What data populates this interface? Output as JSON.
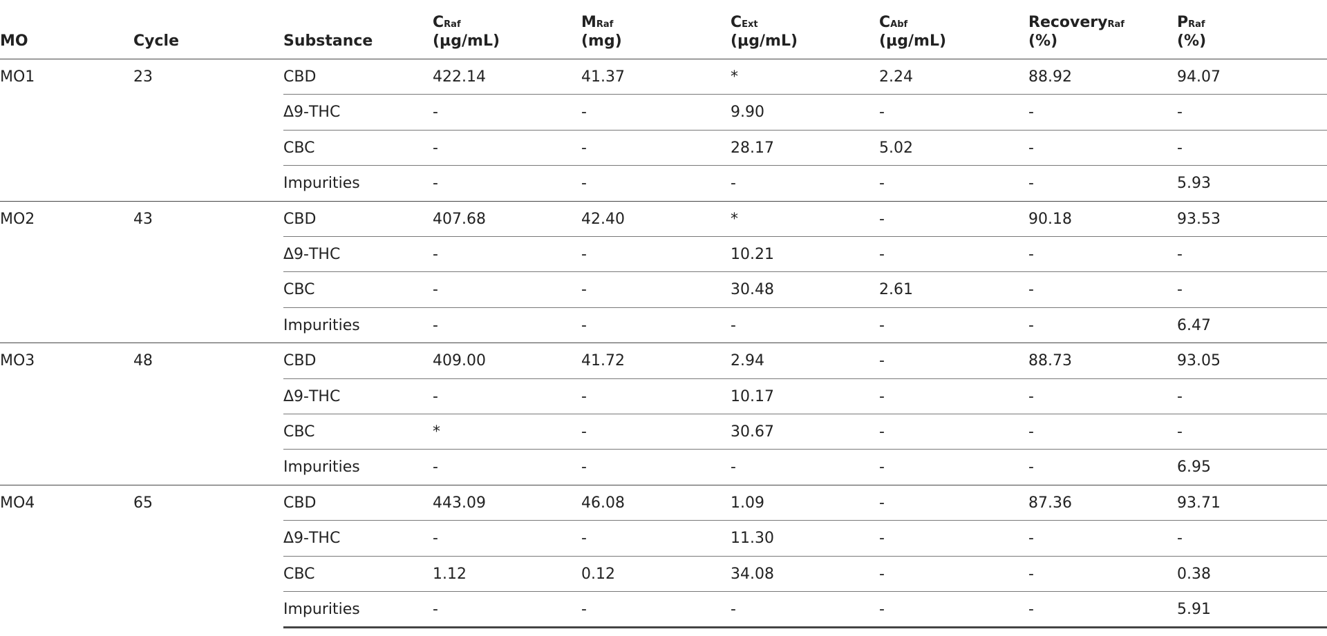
{
  "table": {
    "header": [
      {
        "text": "MO"
      },
      {
        "text": "Cycle"
      },
      {
        "text": "Substance"
      },
      {
        "text": "C",
        "sub": "Raf",
        "unit": "(µg/mL)"
      },
      {
        "text": "M",
        "sub": "Raf",
        "unit": "(mg)"
      },
      {
        "text": "C",
        "sub": "Ext",
        "unit": "(µg/mL)"
      },
      {
        "text": "C",
        "sub": "Abf",
        "unit": "(µg/mL)"
      },
      {
        "text": "Recovery",
        "sub": "Raf",
        "unit": "(%)"
      },
      {
        "text": "P",
        "sub": "Raf",
        "unit": "(%)"
      }
    ],
    "groups": [
      {
        "mo": "MO1",
        "cycle": "23",
        "rows": [
          [
            "CBD",
            "422.14",
            "41.37",
            "*",
            "2.24",
            "88.92",
            "94.07"
          ],
          [
            "Δ9-THC",
            "-",
            "-",
            "9.90",
            "-",
            "-",
            "-"
          ],
          [
            "CBC",
            "-",
            "-",
            "28.17",
            "5.02",
            "-",
            "-"
          ],
          [
            "Impurities",
            "-",
            "-",
            "-",
            "-",
            "-",
            "5.93"
          ]
        ]
      },
      {
        "mo": "MO2",
        "cycle": "43",
        "rows": [
          [
            "CBD",
            "407.68",
            "42.40",
            "*",
            "-",
            "90.18",
            "93.53"
          ],
          [
            "Δ9-THC",
            "-",
            "-",
            "10.21",
            "-",
            "-",
            "-"
          ],
          [
            "CBC",
            "-",
            "-",
            "30.48",
            "2.61",
            "-",
            "-"
          ],
          [
            "Impurities",
            "-",
            "-",
            "-",
            "-",
            "-",
            "6.47"
          ]
        ]
      },
      {
        "mo": "MO3",
        "cycle": "48",
        "rows": [
          [
            "CBD",
            "409.00",
            "41.72",
            "2.94",
            "-",
            "88.73",
            "93.05"
          ],
          [
            "Δ9-THC",
            "-",
            "-",
            "10.17",
            "-",
            "-",
            "-"
          ],
          [
            "CBC",
            "*",
            "-",
            "30.67",
            "-",
            "-",
            "-"
          ],
          [
            "Impurities",
            "-",
            "-",
            "-",
            "-",
            "-",
            "6.95"
          ]
        ]
      },
      {
        "mo": "MO4",
        "cycle": "65",
        "rows": [
          [
            "CBD",
            "443.09",
            "46.08",
            "1.09",
            "-",
            "87.36",
            "93.71"
          ],
          [
            "Δ9-THC",
            "-",
            "-",
            "11.30",
            "-",
            "-",
            "-"
          ],
          [
            "CBC",
            "1.12",
            "0.12",
            "34.08",
            "-",
            "-",
            "0.38"
          ],
          [
            "Impurities",
            "-",
            "-",
            "-",
            "-",
            "-",
            "5.91"
          ]
        ]
      }
    ]
  }
}
